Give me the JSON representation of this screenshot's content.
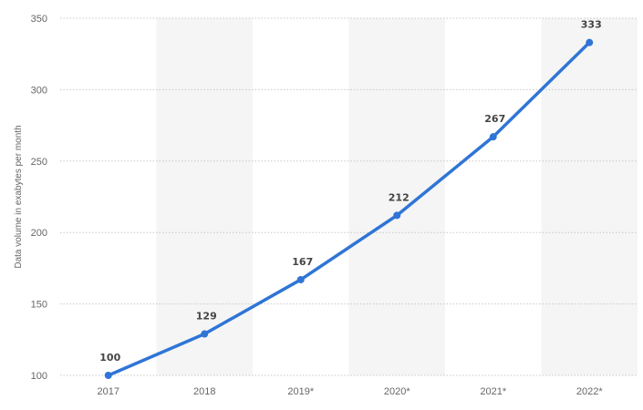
{
  "chart_data": {
    "type": "line",
    "x": [
      "2017",
      "2018",
      "2019*",
      "2020*",
      "2021*",
      "2022*"
    ],
    "series": [
      {
        "values": [
          100,
          129,
          167,
          212,
          267,
          333
        ]
      }
    ],
    "data_labels": [
      "100",
      "129",
      "167",
      "212",
      "267",
      "333"
    ],
    "ylabel": "Data volume in exabytes per month",
    "ylim": [
      100,
      350
    ],
    "yticks": [
      100,
      150,
      200,
      250,
      300,
      350
    ],
    "grid": true,
    "alternating_column_shading": true,
    "line_color": "#2f75d6",
    "shade_color": "#f5f5f5",
    "grid_color": "#c8c8c8"
  }
}
